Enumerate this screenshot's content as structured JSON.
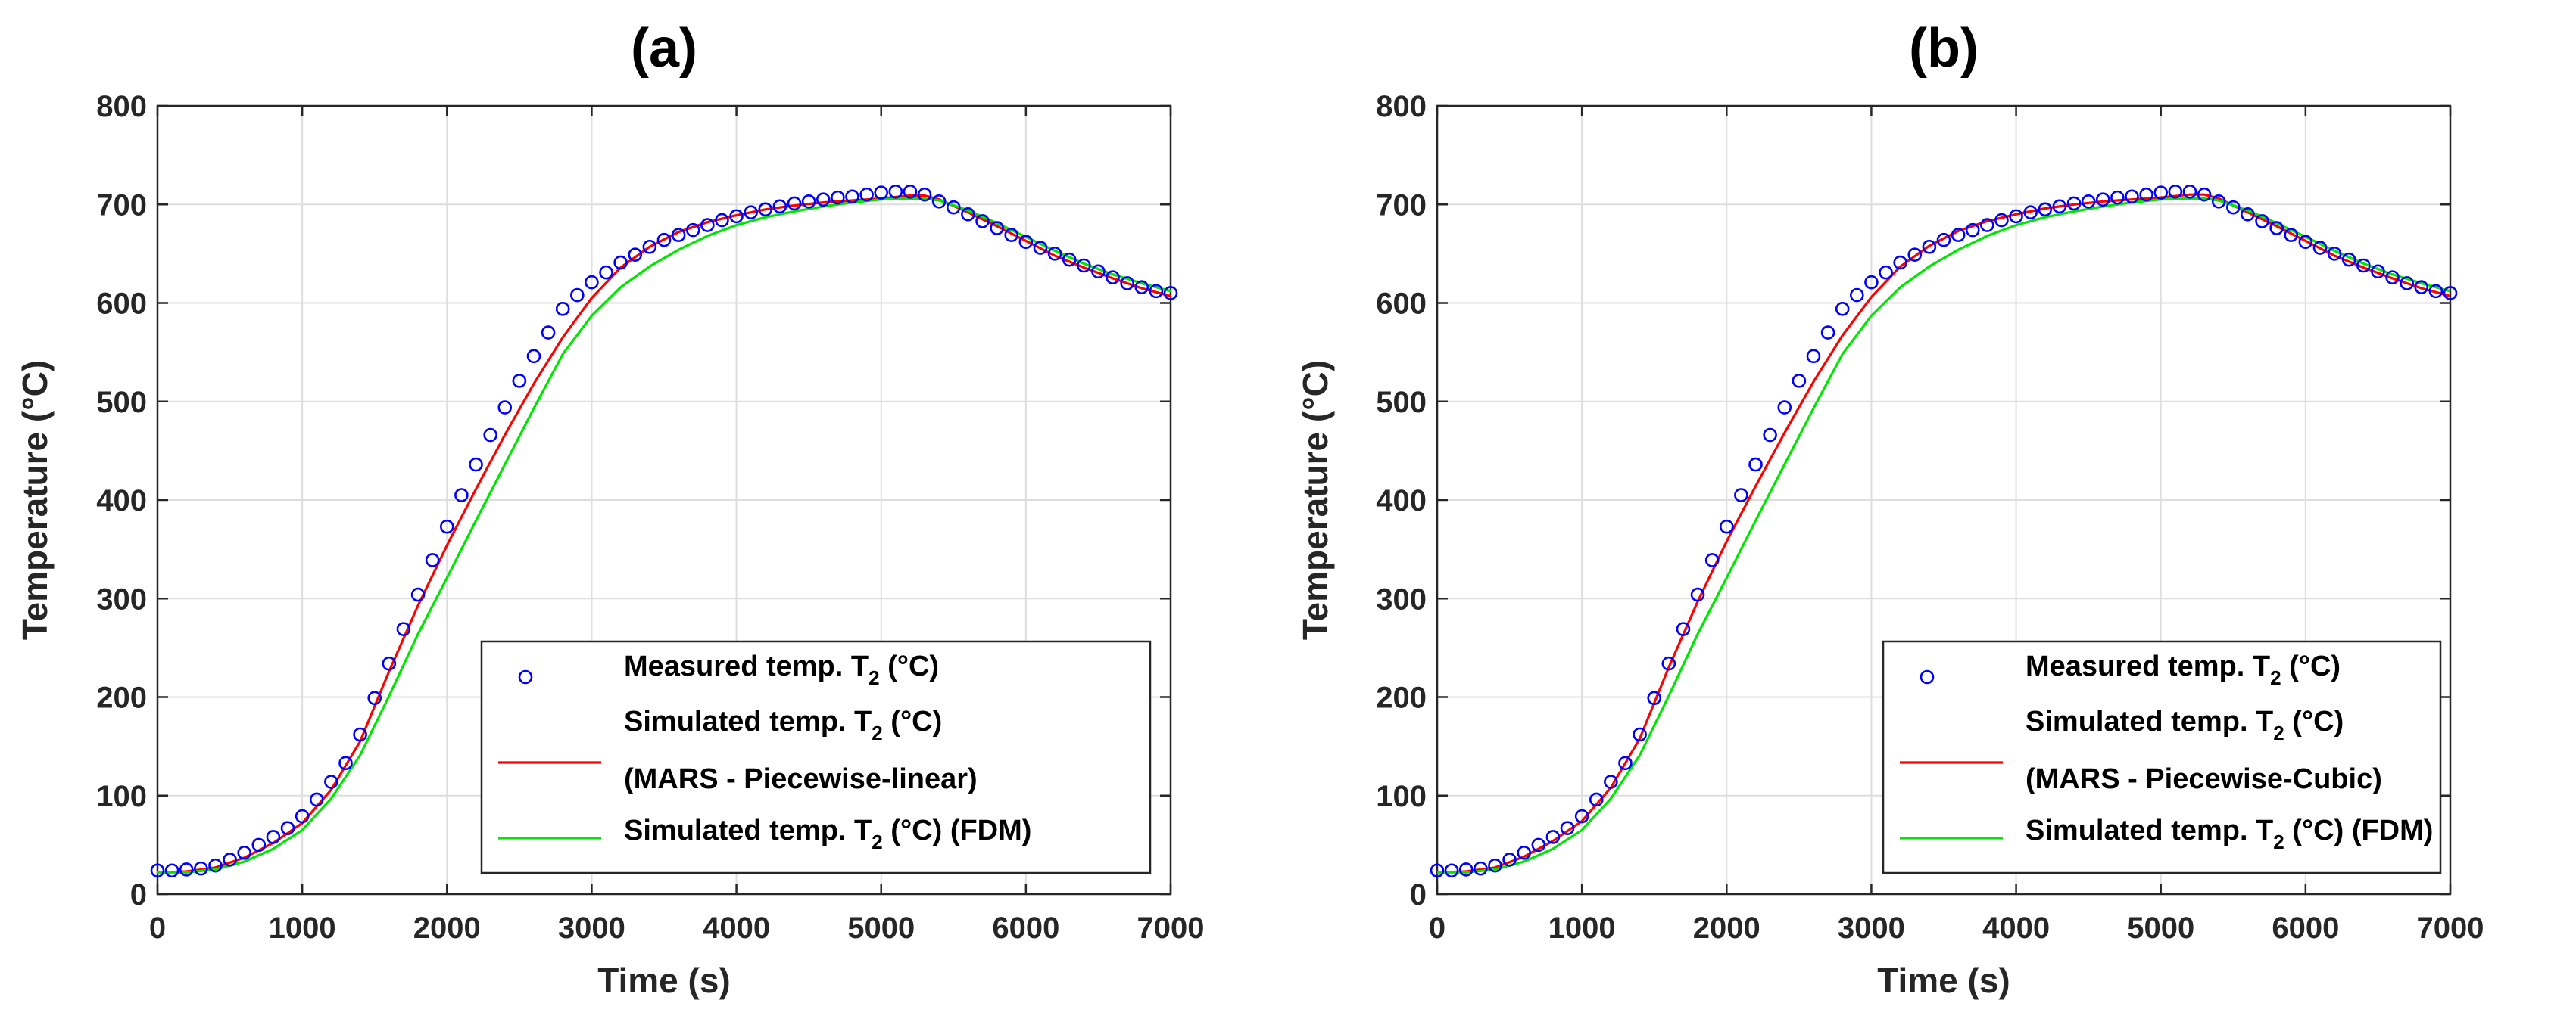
{
  "chart_data": [
    {
      "panel": "a",
      "type": "line",
      "title": "(a)",
      "xlabel": "Time (s)",
      "ylabel": "Temperature (°C)",
      "xlim": [
        0,
        7000
      ],
      "ylim": [
        0,
        800
      ],
      "xticks": [
        0,
        1000,
        2000,
        3000,
        4000,
        5000,
        6000,
        7000
      ],
      "yticks": [
        0,
        100,
        200,
        300,
        400,
        500,
        600,
        700,
        800
      ],
      "grid": true,
      "legend_position": "bottom-right",
      "legend": {
        "measured": {
          "main": "Measured temp. T",
          "sub": "2",
          "tail": " (°C)"
        },
        "mars_line1": {
          "main": "Simulated temp. T",
          "sub": "2",
          "tail": " (°C)"
        },
        "mars_line2": "(MARS - Piecewise-linear)",
        "fdm": {
          "main": "Simulated temp. T",
          "sub": "2",
          "tail": " (°C) (FDM)"
        }
      },
      "series": [
        {
          "name": "Measured temp. T2 (°C)",
          "style": "markers",
          "color": "#0000ff",
          "x": [
            0,
            100,
            200,
            300,
            400,
            500,
            600,
            700,
            800,
            900,
            1000,
            1100,
            1200,
            1300,
            1400,
            1500,
            1600,
            1700,
            1800,
            1900,
            2000,
            2100,
            2200,
            2300,
            2400,
            2500,
            2600,
            2700,
            2800,
            2900,
            3000,
            3100,
            3200,
            3300,
            3400,
            3500,
            3600,
            3700,
            3800,
            3900,
            4000,
            4100,
            4200,
            4300,
            4400,
            4500,
            4600,
            4700,
            4800,
            4900,
            5000,
            5100,
            5200,
            5300,
            5400,
            5500,
            5600,
            5700,
            5800,
            5900,
            6000,
            6100,
            6200,
            6300,
            6400,
            6500,
            6600,
            6700,
            6800,
            6900,
            7000
          ],
          "y": [
            24,
            24,
            25,
            26,
            29,
            35,
            42,
            50,
            58,
            67,
            79,
            96,
            114,
            133,
            162,
            199,
            234,
            269,
            304,
            339,
            373,
            405,
            436,
            466,
            494,
            521,
            546,
            570,
            594,
            608,
            621,
            631,
            641,
            649,
            657,
            664,
            669,
            674,
            679,
            684,
            688,
            692,
            695,
            698,
            701,
            703,
            705,
            707,
            708,
            710,
            712,
            713,
            713,
            710,
            703,
            697,
            690,
            683,
            676,
            669,
            662,
            656,
            650,
            644,
            638,
            632,
            626,
            620,
            616,
            612,
            610
          ]
        },
        {
          "name": "Simulated temp. T2 (°C) (MARS - Piecewise-linear)",
          "style": "line",
          "color": "#ff0000",
          "x": [
            0,
            200,
            400,
            600,
            800,
            1000,
            1200,
            1400,
            1600,
            1800,
            2000,
            2200,
            2400,
            2600,
            2800,
            3000,
            3200,
            3400,
            3600,
            3800,
            4000,
            4200,
            4400,
            4600,
            4800,
            5000,
            5200,
            5300,
            5400,
            5600,
            5800,
            6000,
            6200,
            6400,
            6600,
            6800,
            7000
          ],
          "y": [
            22,
            23,
            27,
            37,
            52,
            72,
            106,
            155,
            226,
            293,
            354,
            411,
            466,
            518,
            565,
            605,
            636,
            657,
            672,
            682,
            689,
            695,
            699,
            702,
            704,
            706,
            709,
            709,
            705,
            692,
            678,
            663,
            648,
            636,
            625,
            615,
            607
          ]
        },
        {
          "name": "Simulated temp. T2 (°C) (FDM)",
          "style": "line",
          "color": "#00e600",
          "x": [
            0,
            200,
            400,
            600,
            800,
            1000,
            1200,
            1400,
            1600,
            1800,
            2000,
            2200,
            2400,
            2600,
            2800,
            3000,
            3200,
            3400,
            3600,
            3800,
            4000,
            4200,
            4400,
            4600,
            4800,
            5000,
            5200,
            5300,
            5400,
            5600,
            5800,
            6000,
            6200,
            6400,
            6600,
            6800,
            7000
          ],
          "y": [
            22,
            22,
            25,
            33,
            46,
            65,
            97,
            141,
            201,
            264,
            321,
            379,
            436,
            493,
            548,
            587,
            616,
            637,
            654,
            668,
            679,
            687,
            693,
            698,
            702,
            705,
            706,
            706,
            704,
            694,
            681,
            667,
            653,
            640,
            629,
            620,
            612
          ]
        }
      ]
    },
    {
      "panel": "b",
      "type": "line",
      "title": "(b)",
      "xlabel": "Time (s)",
      "ylabel": "Temperature (°C)",
      "xlim": [
        0,
        7000
      ],
      "ylim": [
        0,
        800
      ],
      "xticks": [
        0,
        1000,
        2000,
        3000,
        4000,
        5000,
        6000,
        7000
      ],
      "yticks": [
        0,
        100,
        200,
        300,
        400,
        500,
        600,
        700,
        800
      ],
      "grid": true,
      "legend_position": "bottom-right",
      "legend": {
        "measured": {
          "main": "Measured temp. T",
          "sub": "2",
          "tail": " (°C)"
        },
        "mars_line1": {
          "main": "Simulated temp. T",
          "sub": "2",
          "tail": " (°C)"
        },
        "mars_line2": "(MARS - Piecewise-Cubic)",
        "fdm": {
          "main": "Simulated temp. T",
          "sub": "2",
          "tail": " (°C) (FDM)"
        }
      },
      "series": [
        {
          "name": "Measured temp. T2 (°C)",
          "style": "markers",
          "color": "#0000ff",
          "x": [
            0,
            100,
            200,
            300,
            400,
            500,
            600,
            700,
            800,
            900,
            1000,
            1100,
            1200,
            1300,
            1400,
            1500,
            1600,
            1700,
            1800,
            1900,
            2000,
            2100,
            2200,
            2300,
            2400,
            2500,
            2600,
            2700,
            2800,
            2900,
            3000,
            3100,
            3200,
            3300,
            3400,
            3500,
            3600,
            3700,
            3800,
            3900,
            4000,
            4100,
            4200,
            4300,
            4400,
            4500,
            4600,
            4700,
            4800,
            4900,
            5000,
            5100,
            5200,
            5300,
            5400,
            5500,
            5600,
            5700,
            5800,
            5900,
            6000,
            6100,
            6200,
            6300,
            6400,
            6500,
            6600,
            6700,
            6800,
            6900,
            7000
          ],
          "y": [
            24,
            24,
            25,
            26,
            29,
            35,
            42,
            50,
            58,
            67,
            79,
            96,
            114,
            133,
            162,
            199,
            234,
            269,
            304,
            339,
            373,
            405,
            436,
            466,
            494,
            521,
            546,
            570,
            594,
            608,
            621,
            631,
            641,
            649,
            657,
            664,
            669,
            674,
            679,
            684,
            688,
            692,
            695,
            698,
            701,
            703,
            705,
            707,
            708,
            710,
            712,
            713,
            713,
            710,
            703,
            697,
            690,
            683,
            676,
            669,
            662,
            656,
            650,
            644,
            638,
            632,
            626,
            620,
            616,
            612,
            610
          ]
        },
        {
          "name": "Simulated temp. T2 (°C) (MARS - Piecewise-Cubic)",
          "style": "line",
          "color": "#ff0000",
          "x": [
            0,
            200,
            400,
            600,
            800,
            1000,
            1200,
            1400,
            1600,
            1800,
            2000,
            2200,
            2400,
            2600,
            2800,
            3000,
            3200,
            3400,
            3600,
            3800,
            4000,
            4200,
            4400,
            4600,
            4800,
            5000,
            5200,
            5300,
            5400,
            5600,
            5800,
            6000,
            6200,
            6400,
            6600,
            6800,
            7000
          ],
          "y": [
            22,
            23,
            27,
            38,
            54,
            74,
            108,
            158,
            230,
            297,
            358,
            414,
            468,
            520,
            567,
            606,
            637,
            658,
            673,
            683,
            690,
            696,
            700,
            703,
            705,
            707,
            710,
            710,
            706,
            692,
            678,
            663,
            648,
            636,
            625,
            615,
            607
          ]
        },
        {
          "name": "Simulated temp. T2 (°C) (FDM)",
          "style": "line",
          "color": "#00e600",
          "x": [
            0,
            200,
            400,
            600,
            800,
            1000,
            1200,
            1400,
            1600,
            1800,
            2000,
            2200,
            2400,
            2600,
            2800,
            3000,
            3200,
            3400,
            3600,
            3800,
            4000,
            4200,
            4400,
            4600,
            4800,
            5000,
            5200,
            5300,
            5400,
            5600,
            5800,
            6000,
            6200,
            6400,
            6600,
            6800,
            7000
          ],
          "y": [
            22,
            22,
            25,
            33,
            46,
            65,
            97,
            141,
            201,
            264,
            321,
            379,
            436,
            493,
            548,
            587,
            616,
            637,
            654,
            668,
            679,
            687,
            693,
            698,
            702,
            705,
            706,
            706,
            704,
            694,
            681,
            667,
            653,
            640,
            629,
            620,
            612
          ]
        }
      ]
    }
  ]
}
